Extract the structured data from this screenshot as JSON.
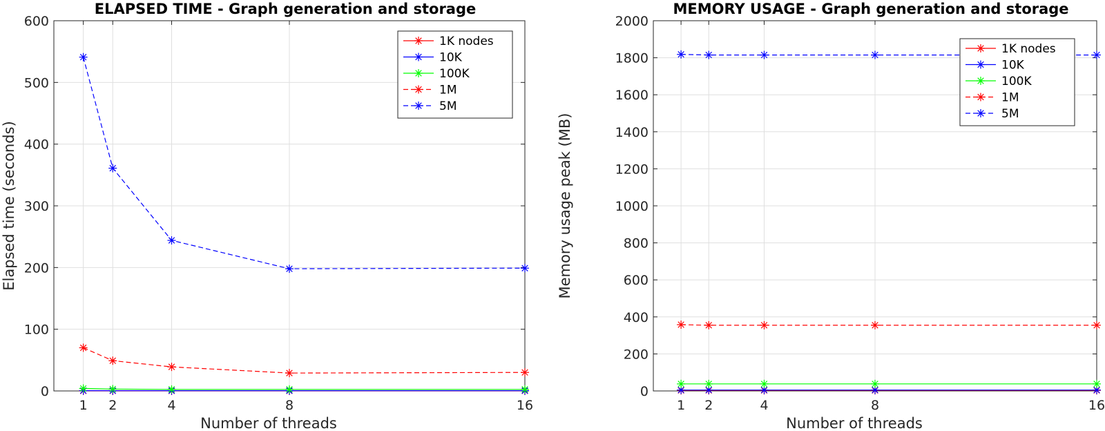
{
  "chart_data": [
    {
      "type": "line",
      "title": "ELAPSED TIME - Graph generation and storage",
      "xlabel": "Number of threads",
      "ylabel": "Elapsed time (seconds)",
      "x": [
        1,
        2,
        4,
        8,
        16
      ],
      "xticks": [
        1,
        2,
        4,
        8,
        16
      ],
      "xlim": [
        0,
        16
      ],
      "ylim": [
        0,
        600
      ],
      "yticks": [
        0,
        100,
        200,
        300,
        400,
        500,
        600
      ],
      "grid": true,
      "legend_position": "top-right",
      "series": [
        {
          "name": "1K nodes",
          "color": "#ff0000",
          "dash": "solid",
          "marker": "asterisk",
          "values": [
            0.1,
            0.1,
            0.1,
            0.1,
            0.1
          ]
        },
        {
          "name": "10K",
          "color": "#0000ff",
          "dash": "solid",
          "marker": "asterisk",
          "values": [
            0.5,
            0.4,
            0.4,
            0.4,
            0.4
          ]
        },
        {
          "name": "100K",
          "color": "#00ff00",
          "dash": "solid",
          "marker": "asterisk",
          "values": [
            4,
            3,
            2.5,
            2.5,
            2.5
          ]
        },
        {
          "name": "1M",
          "color": "#ff0000",
          "dash": "dashed",
          "marker": "asterisk",
          "values": [
            70,
            49,
            39,
            29,
            30
          ]
        },
        {
          "name": "5M",
          "color": "#0000ff",
          "dash": "dashed",
          "marker": "asterisk",
          "values": [
            541,
            361,
            244,
            198,
            199
          ]
        }
      ]
    },
    {
      "type": "line",
      "title": "MEMORY USAGE - Graph generation and storage",
      "xlabel": "Number of threads",
      "ylabel": "Memory usage peak (MB)",
      "x": [
        1,
        2,
        4,
        8,
        16
      ],
      "xticks": [
        1,
        2,
        4,
        8,
        16
      ],
      "xlim": [
        0,
        16
      ],
      "ylim": [
        0,
        2000
      ],
      "yticks": [
        0,
        200,
        400,
        600,
        800,
        1000,
        1200,
        1400,
        1600,
        1800,
        2000
      ],
      "grid": true,
      "legend_position": "top-right",
      "series": [
        {
          "name": "1K nodes",
          "color": "#ff0000",
          "dash": "solid",
          "marker": "asterisk",
          "values": [
            3,
            3,
            3,
            3,
            3
          ]
        },
        {
          "name": "10K",
          "color": "#0000ff",
          "dash": "solid",
          "marker": "asterisk",
          "values": [
            5,
            5,
            5,
            5,
            5
          ]
        },
        {
          "name": "100K",
          "color": "#00ff00",
          "dash": "solid",
          "marker": "asterisk",
          "values": [
            38,
            38,
            38,
            38,
            38
          ]
        },
        {
          "name": "1M",
          "color": "#ff0000",
          "dash": "dashed",
          "marker": "asterisk",
          "values": [
            358,
            355,
            355,
            355,
            355
          ]
        },
        {
          "name": "5M",
          "color": "#0000ff",
          "dash": "dashed",
          "marker": "asterisk",
          "values": [
            1818,
            1815,
            1815,
            1815,
            1815
          ]
        }
      ]
    }
  ]
}
